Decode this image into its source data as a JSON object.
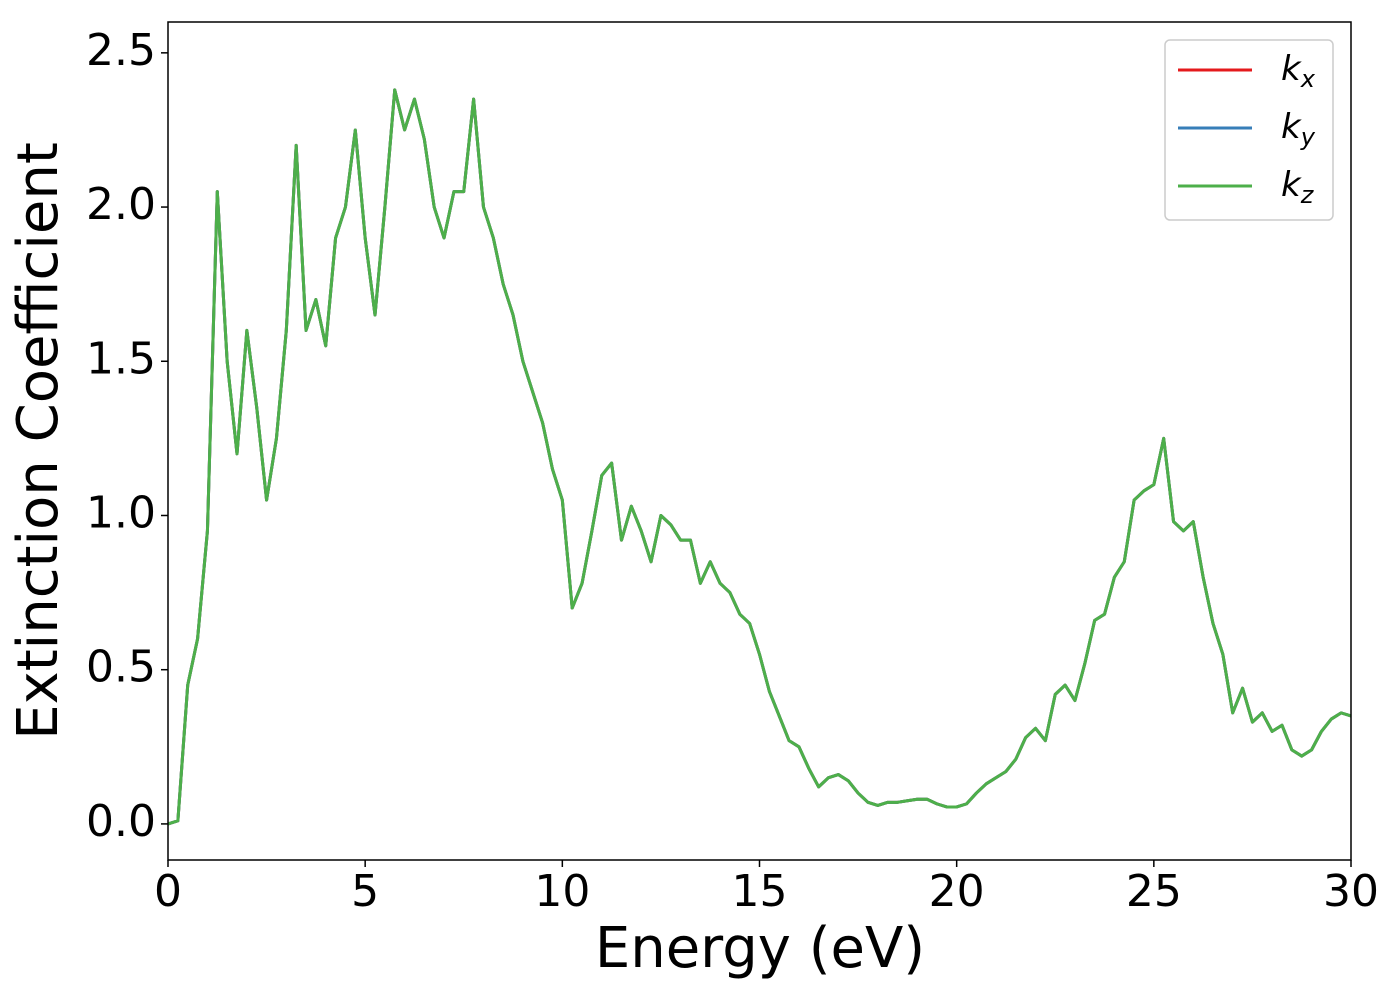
{
  "chart_data": {
    "type": "line",
    "xlabel": "Energy (eV)",
    "ylabel": "Extinction Coefficient",
    "xlim": [
      0,
      30
    ],
    "ylim": [
      -0.117,
      2.6
    ],
    "xticks": [
      0,
      5,
      10,
      15,
      20,
      25,
      30
    ],
    "yticks": [
      {
        "value": 0,
        "label": "0.0"
      },
      0.5,
      {
        "value": 1,
        "label": "1.0"
      },
      1.5,
      {
        "value": 2,
        "label": "2.0"
      },
      2.5
    ],
    "grid": false,
    "legend": "upper right",
    "x": [
      0,
      0.25,
      0.5,
      0.75,
      1,
      1.25,
      1.5,
      1.75,
      2,
      2.25,
      2.5,
      2.75,
      3,
      3.25,
      3.5,
      3.75,
      4,
      4.25,
      4.5,
      4.75,
      5,
      5.25,
      5.5,
      5.75,
      6,
      6.25,
      6.5,
      6.75,
      7,
      7.25,
      7.5,
      7.75,
      8,
      8.25,
      8.5,
      8.75,
      9,
      9.25,
      9.5,
      9.75,
      10,
      10.25,
      10.5,
      10.75,
      11,
      11.25,
      11.5,
      11.75,
      12,
      12.25,
      12.5,
      12.75,
      13,
      13.25,
      13.5,
      13.75,
      14,
      14.25,
      14.5,
      14.75,
      15,
      15.25,
      15.5,
      15.75,
      16,
      16.25,
      16.5,
      16.75,
      17,
      17.25,
      17.5,
      17.75,
      18,
      18.25,
      18.5,
      18.75,
      19,
      19.25,
      19.5,
      19.75,
      20,
      20.25,
      20.5,
      20.75,
      21,
      21.25,
      21.5,
      21.75,
      22,
      22.25,
      22.5,
      22.75,
      23,
      23.25,
      23.5,
      23.75,
      24,
      24.25,
      24.5,
      24.75,
      25,
      25.25,
      25.5,
      25.75,
      26,
      26.25,
      26.5,
      26.75,
      27,
      27.25,
      27.5,
      27.75,
      28,
      28.25,
      28.5,
      28.75,
      29,
      29.25,
      29.5,
      29.75,
      30
    ],
    "series": [
      {
        "name": "kx",
        "color": "#e41a1c",
        "values": [
          0,
          0.01,
          0.45,
          0.6,
          0.95,
          2.05,
          1.5,
          1.2,
          1.6,
          1.35,
          1.05,
          1.25,
          1.6,
          2.2,
          1.6,
          1.7,
          1.55,
          1.9,
          2.0,
          2.25,
          1.9,
          1.65,
          2.0,
          2.38,
          2.25,
          2.35,
          2.22,
          2.0,
          1.9,
          2.05,
          2.05,
          2.35,
          2.0,
          1.9,
          1.75,
          1.65,
          1.5,
          1.4,
          1.3,
          1.15,
          1.05,
          0.7,
          0.78,
          0.95,
          1.13,
          1.17,
          0.92,
          1.03,
          0.95,
          0.85,
          1.0,
          0.97,
          0.92,
          0.92,
          0.78,
          0.85,
          0.78,
          0.75,
          0.68,
          0.65,
          0.55,
          0.43,
          0.35,
          0.27,
          0.25,
          0.18,
          0.12,
          0.15,
          0.16,
          0.14,
          0.1,
          0.07,
          0.06,
          0.07,
          0.07,
          0.075,
          0.08,
          0.08,
          0.065,
          0.055,
          0.055,
          0.065,
          0.1,
          0.13,
          0.15,
          0.17,
          0.21,
          0.28,
          0.31,
          0.27,
          0.42,
          0.45,
          0.4,
          0.52,
          0.66,
          0.68,
          0.8,
          0.85,
          1.05,
          1.08,
          1.1,
          1.25,
          0.98,
          0.95,
          0.98,
          0.8,
          0.65,
          0.55,
          0.36,
          0.44,
          0.33,
          0.36,
          0.3,
          0.32,
          0.24,
          0.22,
          0.24,
          0.3,
          0.34,
          0.36,
          0.35
        ]
      },
      {
        "name": "ky",
        "color": "#377eb8",
        "values": [
          0,
          0.01,
          0.45,
          0.6,
          0.95,
          2.05,
          1.5,
          1.2,
          1.6,
          1.35,
          1.05,
          1.25,
          1.6,
          2.2,
          1.6,
          1.7,
          1.55,
          1.9,
          2.0,
          2.25,
          1.9,
          1.65,
          2.0,
          2.38,
          2.25,
          2.35,
          2.22,
          2.0,
          1.9,
          2.05,
          2.05,
          2.35,
          2.0,
          1.9,
          1.75,
          1.65,
          1.5,
          1.4,
          1.3,
          1.15,
          1.05,
          0.7,
          0.78,
          0.95,
          1.13,
          1.17,
          0.92,
          1.03,
          0.95,
          0.85,
          1.0,
          0.97,
          0.92,
          0.92,
          0.78,
          0.85,
          0.78,
          0.75,
          0.68,
          0.65,
          0.55,
          0.43,
          0.35,
          0.27,
          0.25,
          0.18,
          0.12,
          0.15,
          0.16,
          0.14,
          0.1,
          0.07,
          0.06,
          0.07,
          0.07,
          0.075,
          0.08,
          0.08,
          0.065,
          0.055,
          0.055,
          0.065,
          0.1,
          0.13,
          0.15,
          0.17,
          0.21,
          0.28,
          0.31,
          0.27,
          0.42,
          0.45,
          0.4,
          0.52,
          0.66,
          0.68,
          0.8,
          0.85,
          1.05,
          1.08,
          1.1,
          1.25,
          0.98,
          0.95,
          0.98,
          0.8,
          0.65,
          0.55,
          0.36,
          0.44,
          0.33,
          0.36,
          0.3,
          0.32,
          0.24,
          0.22,
          0.24,
          0.3,
          0.34,
          0.36,
          0.35
        ]
      },
      {
        "name": "kz",
        "color": "#4daf4a",
        "values": [
          0,
          0.01,
          0.45,
          0.6,
          0.95,
          2.05,
          1.5,
          1.2,
          1.6,
          1.35,
          1.05,
          1.25,
          1.6,
          2.2,
          1.6,
          1.7,
          1.55,
          1.9,
          2.0,
          2.25,
          1.9,
          1.65,
          2.0,
          2.38,
          2.25,
          2.35,
          2.22,
          2.0,
          1.9,
          2.05,
          2.05,
          2.35,
          2.0,
          1.9,
          1.75,
          1.65,
          1.5,
          1.4,
          1.3,
          1.15,
          1.05,
          0.7,
          0.78,
          0.95,
          1.13,
          1.17,
          0.92,
          1.03,
          0.95,
          0.85,
          1.0,
          0.97,
          0.92,
          0.92,
          0.78,
          0.85,
          0.78,
          0.75,
          0.68,
          0.65,
          0.55,
          0.43,
          0.35,
          0.27,
          0.25,
          0.18,
          0.12,
          0.15,
          0.16,
          0.14,
          0.1,
          0.07,
          0.06,
          0.07,
          0.07,
          0.075,
          0.08,
          0.08,
          0.065,
          0.055,
          0.055,
          0.065,
          0.1,
          0.13,
          0.15,
          0.17,
          0.21,
          0.28,
          0.31,
          0.27,
          0.42,
          0.45,
          0.4,
          0.52,
          0.66,
          0.68,
          0.8,
          0.85,
          1.05,
          1.08,
          1.1,
          1.25,
          0.98,
          0.95,
          0.98,
          0.8,
          0.65,
          0.55,
          0.36,
          0.44,
          0.33,
          0.36,
          0.3,
          0.32,
          0.24,
          0.22,
          0.24,
          0.3,
          0.34,
          0.36,
          0.35
        ]
      }
    ]
  }
}
